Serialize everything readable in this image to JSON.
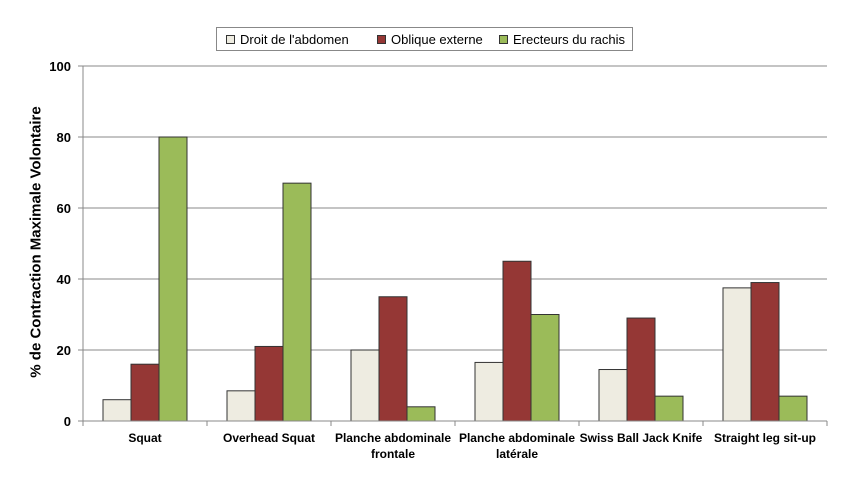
{
  "chart_data": {
    "type": "bar",
    "title": "",
    "xlabel": "",
    "ylabel": "% de Contraction Maximale Volontaire",
    "ylim": [
      0,
      100
    ],
    "yticks": [
      0,
      20,
      40,
      60,
      80,
      100
    ],
    "grid": true,
    "legend_position": "top",
    "categories": [
      "Squat",
      "Overhead Squat",
      "Planche abdominale\nfrontale",
      "Planche abdominale\nlatérale",
      "Swiss Ball Jack Knife",
      "Straight leg sit-up"
    ],
    "series": [
      {
        "name": "Droit de l'abdomen",
        "color": "#eeece1",
        "values": [
          6,
          8.5,
          20,
          16.5,
          14.5,
          37.5
        ]
      },
      {
        "name": "Oblique externe",
        "color": "#953735",
        "values": [
          16,
          21,
          35,
          45,
          29,
          39
        ]
      },
      {
        "name": "Erecteurs du rachis",
        "color": "#9bbb59",
        "values": [
          80,
          67,
          4,
          30,
          7,
          7
        ]
      }
    ]
  }
}
